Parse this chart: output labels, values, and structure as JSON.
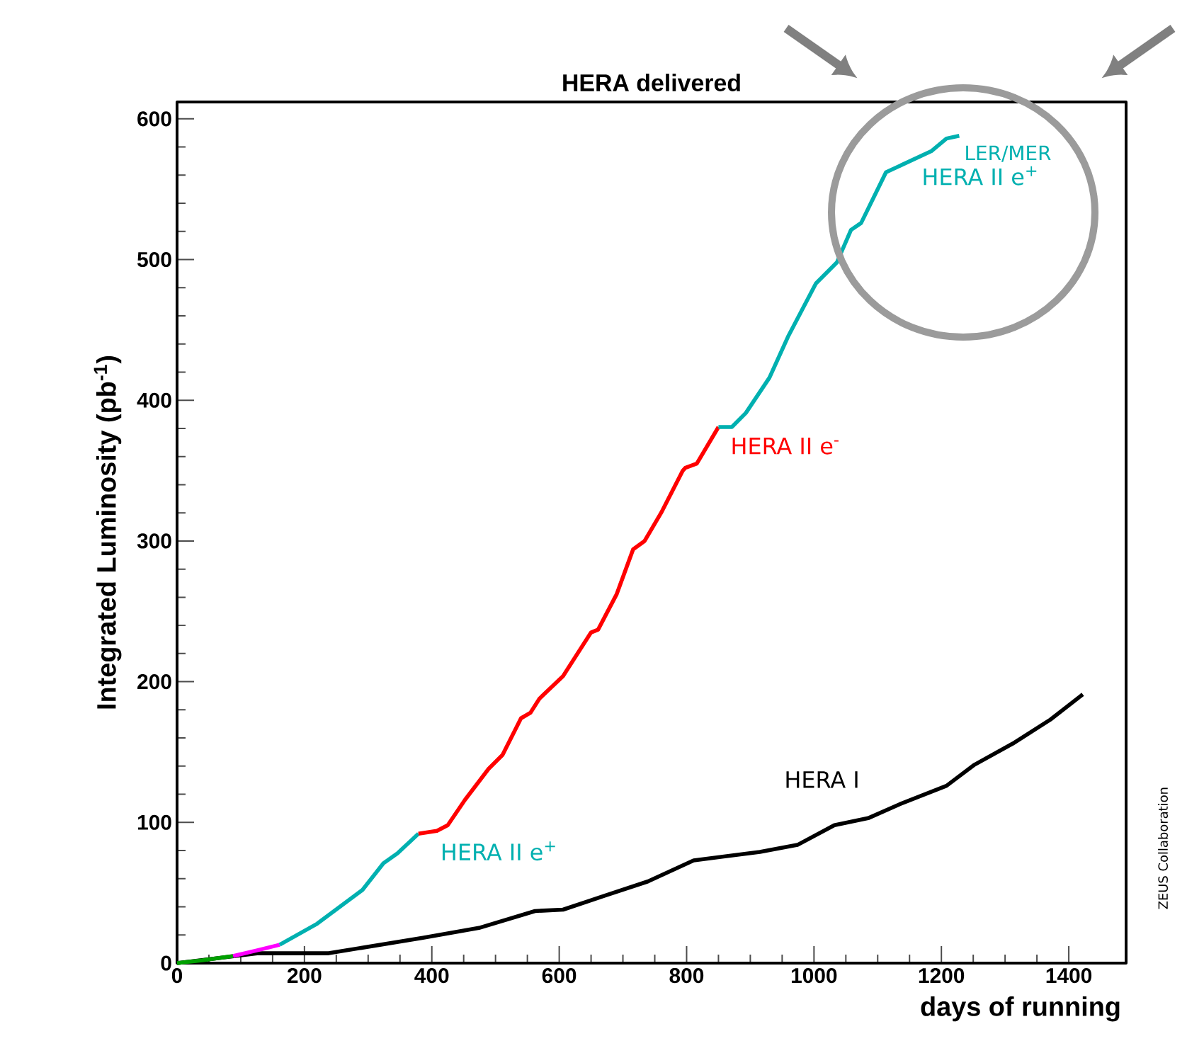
{
  "chart_data": {
    "type": "line",
    "title": "HERA delivered",
    "xlabel": "days of running",
    "ylabel": "Integrated Luminosity (pb$^{-1}$)",
    "xlim": [
      0,
      1490
    ],
    "ylim": [
      0,
      612
    ],
    "xticks": [
      0,
      200,
      400,
      600,
      800,
      1000,
      1200,
      1400
    ],
    "yticks": [
      0,
      100,
      200,
      300,
      400,
      500,
      600
    ],
    "grid": false,
    "marker": "none",
    "line_style": "solid",
    "annotations": [
      "LER/MER",
      "ZEUS Collaboration"
    ],
    "series": [
      {
        "name": "HERA I",
        "color": "#000000",
        "x": [
          0,
          128,
          238,
          386,
          474,
          562,
          606,
          672,
          739,
          811,
          915,
          974,
          1032,
          1085,
          1135,
          1208,
          1252,
          1312,
          1371,
          1422
        ],
        "values": [
          0,
          7,
          7,
          18,
          25,
          37,
          38,
          48,
          58,
          73,
          79,
          84,
          98,
          103,
          113,
          126,
          141,
          156,
          173,
          191
        ]
      },
      {
        "color": "#00a000",
        "x": [
          0,
          40,
          88
        ],
        "values": [
          0,
          2,
          5
        ]
      },
      {
        "color": "#ff00ff",
        "x": [
          88,
          125,
          161
        ],
        "values": [
          5,
          9,
          13
        ]
      },
      {
        "name": "HERA II e$^{+}$",
        "color": "#00b0b0",
        "x": [
          161,
          220,
          291,
          324,
          346,
          379
        ],
        "values": [
          13,
          28,
          52,
          71,
          78,
          92
        ]
      },
      {
        "name": "HERA II e$^{-}$",
        "color": "#ff0000",
        "x": [
          379,
          408,
          425,
          452,
          489,
          511,
          540,
          555,
          569,
          606,
          650,
          661,
          690,
          716,
          734,
          760,
          794,
          798,
          816,
          850
        ],
        "values": [
          92,
          94,
          98,
          116,
          138,
          148,
          174,
          178,
          188,
          204,
          235,
          237,
          262,
          294,
          300,
          320,
          350,
          352,
          355,
          381
        ]
      },
      {
        "name": "HERA II e$^{+}$",
        "color": "#00b0b0",
        "x": [
          850,
          871,
          893,
          930,
          959,
          1003,
          1036,
          1058,
          1074,
          1113,
          1184,
          1208,
          1228
        ],
        "values": [
          381,
          381,
          391,
          416,
          445,
          483,
          498,
          521,
          526,
          562,
          577,
          586,
          588
        ]
      }
    ]
  }
}
